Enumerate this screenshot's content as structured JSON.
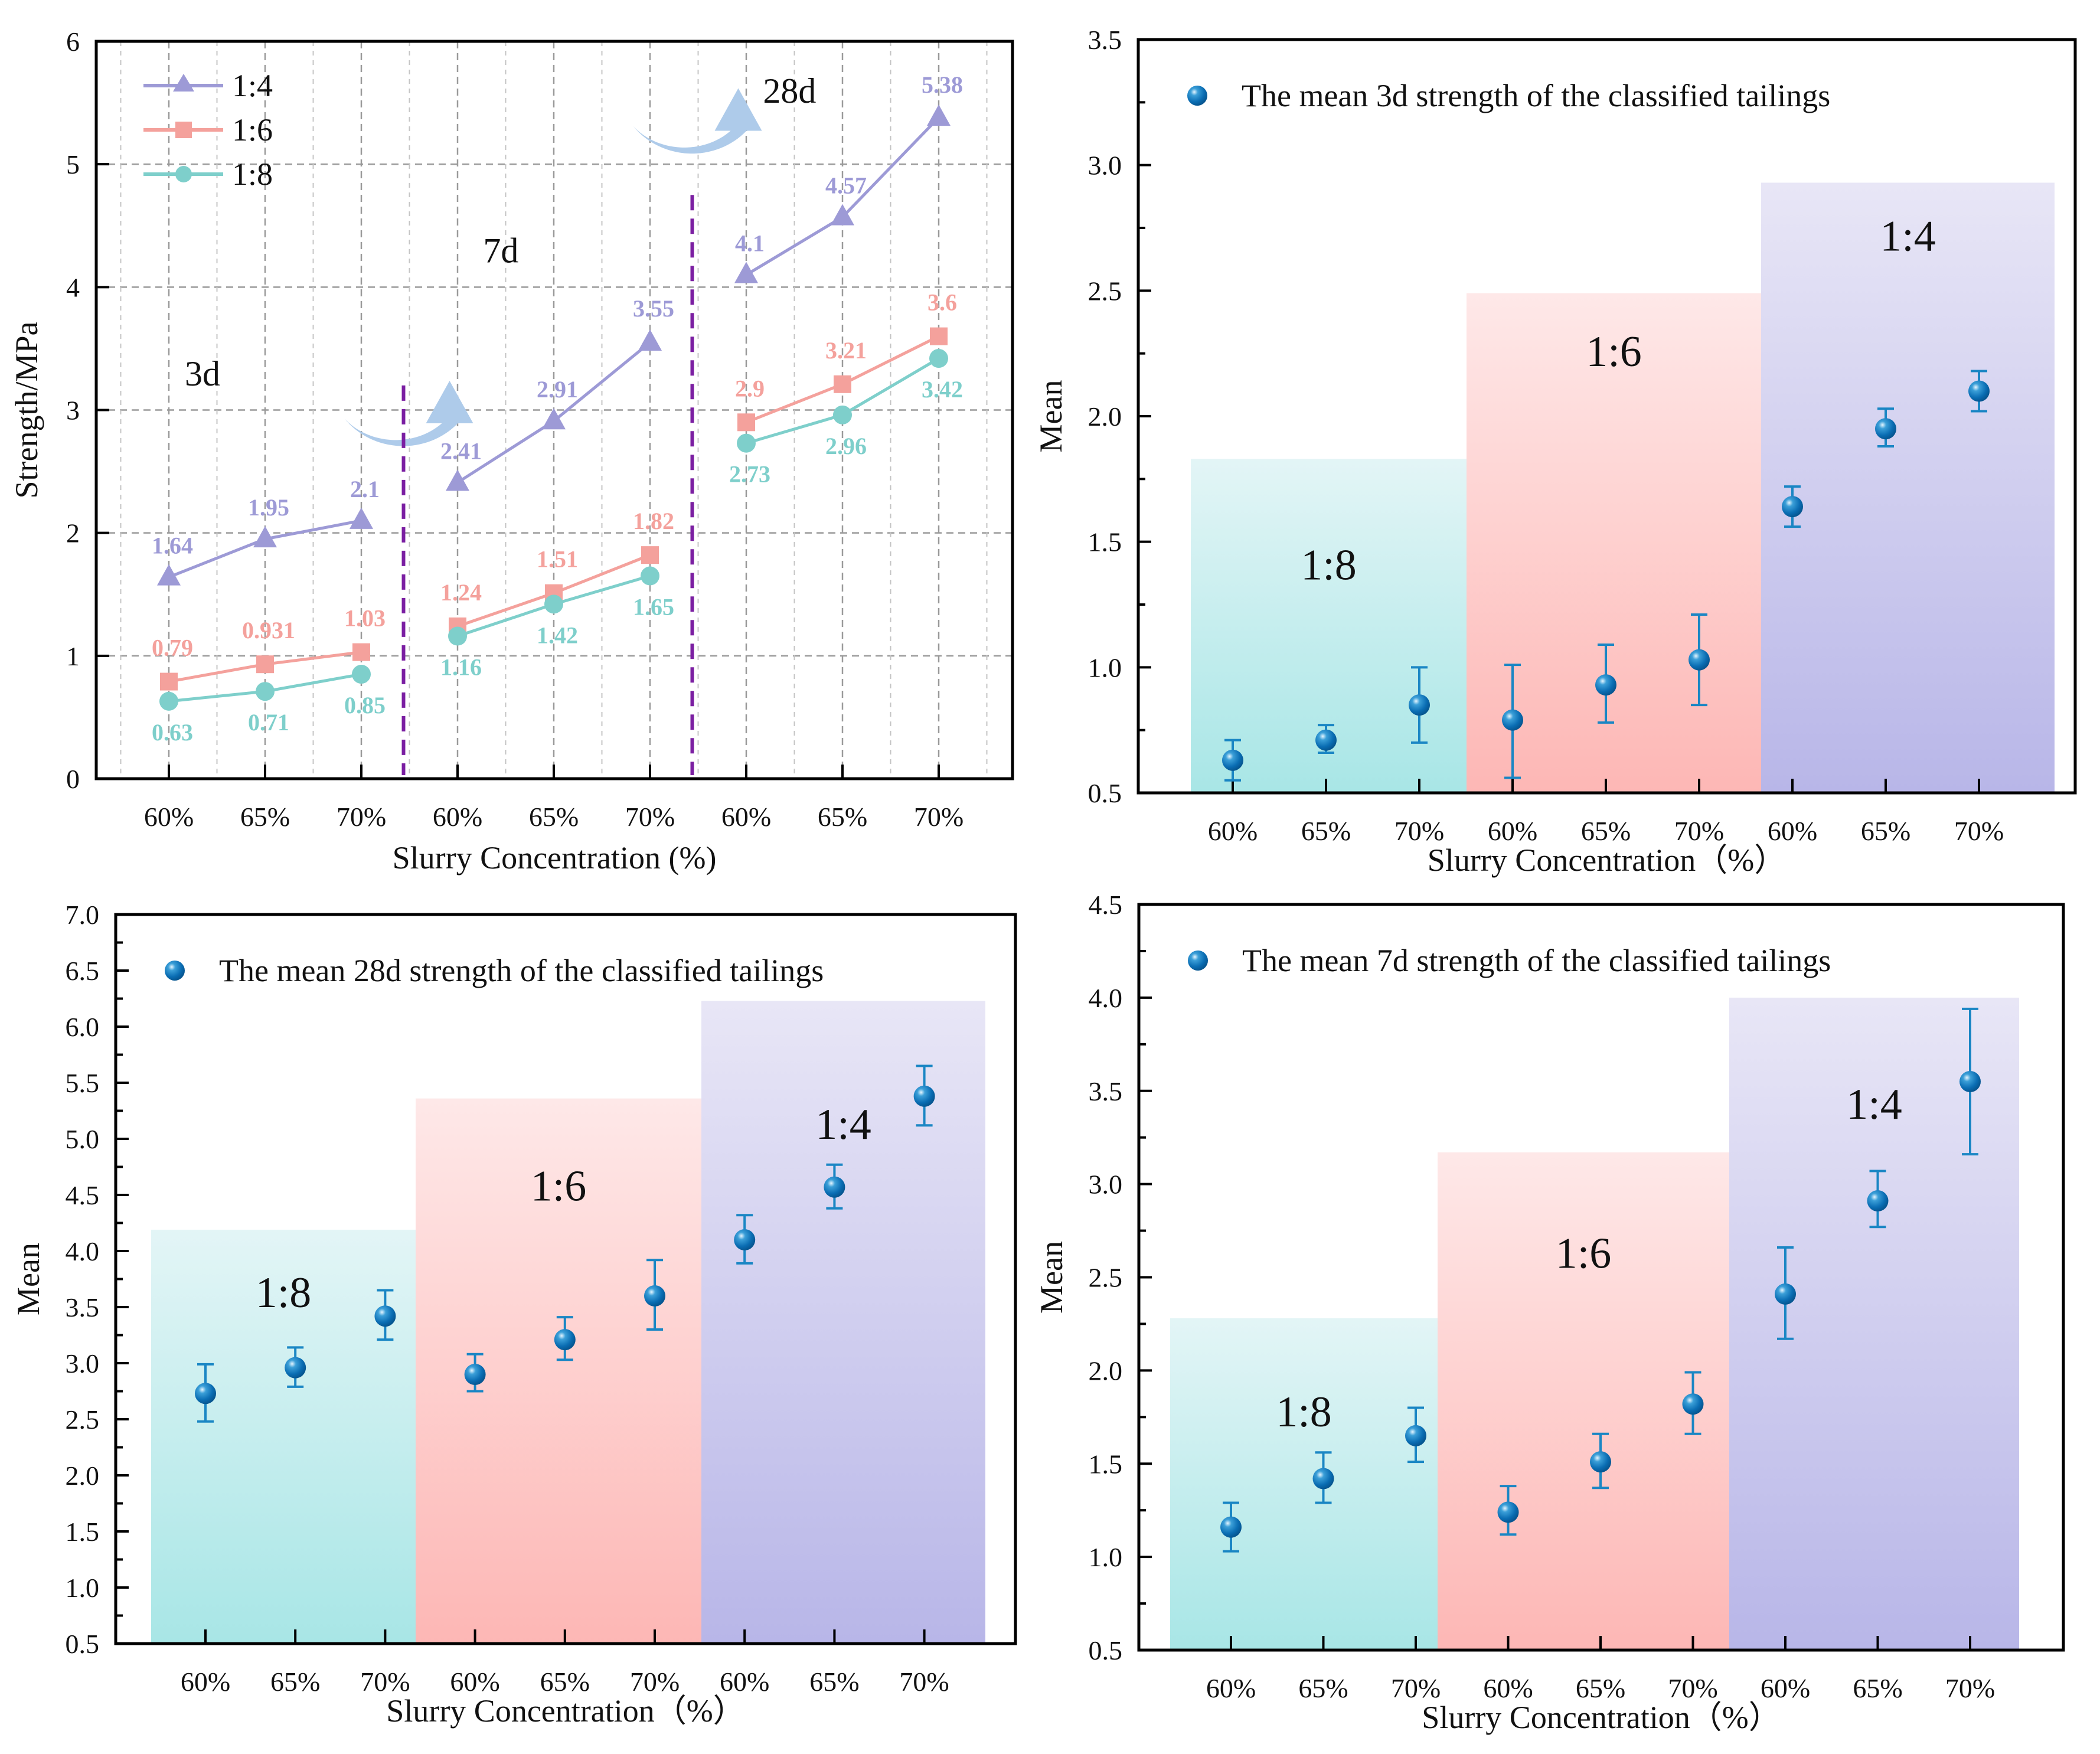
{
  "chart_data": [
    {
      "id": "panel-line",
      "type": "line",
      "title": "",
      "xlabel": "Slurry Concentration (%)",
      "ylabel": "Strength/MPa",
      "ylim": [
        0,
        6
      ],
      "yticks": [
        "0",
        "1",
        "2",
        "3",
        "4",
        "5",
        "6"
      ],
      "categories": [
        "60%",
        "65%",
        "70%",
        "60%",
        "65%",
        "70%",
        "60%",
        "65%",
        "70%"
      ],
      "grid": true,
      "legend_position": "top-left",
      "groups": [
        "3d",
        "7d",
        "28d"
      ],
      "series": [
        {
          "name": "1:4",
          "marker": "triangle",
          "color": "#9d9ad6",
          "values": [
            1.64,
            1.95,
            2.1,
            2.41,
            2.91,
            3.55,
            4.1,
            4.57,
            5.38
          ],
          "labels": [
            "1.64",
            "1.95",
            "2.1",
            "2.41",
            "2.91",
            "3.55",
            "4.1",
            "4.57",
            "5.38"
          ]
        },
        {
          "name": "1:6",
          "marker": "square",
          "color": "#f4a19c",
          "values": [
            0.79,
            0.931,
            1.03,
            1.24,
            1.51,
            1.82,
            2.9,
            3.21,
            3.6
          ],
          "labels": [
            "0.79",
            "0.931",
            "1.03",
            "1.24",
            "1.51",
            "1.82",
            "2.9",
            "3.21",
            "3.6"
          ]
        },
        {
          "name": "1:8",
          "marker": "circle",
          "color": "#7ecfcb",
          "values": [
            0.63,
            0.71,
            0.85,
            1.16,
            1.42,
            1.65,
            2.73,
            2.96,
            3.42
          ],
          "labels": [
            "0.63",
            "0.71",
            "0.85",
            "1.16",
            "1.42",
            "1.65",
            "2.73",
            "2.96",
            "3.42"
          ]
        }
      ],
      "annotations": [
        {
          "text": "3d",
          "x_index": 0.35,
          "y": 3.2
        },
        {
          "text": "7d",
          "x_index": 3.45,
          "y": 4.2
        },
        {
          "text": "28d",
          "x_index": 6.45,
          "y": 5.5
        }
      ],
      "dividers_between": [
        2.5,
        5.5
      ],
      "divider_color": "#7b1fa2"
    },
    {
      "id": "panel-3d",
      "type": "scatter",
      "xlabel": "Slurry Concentration（%）",
      "ylabel": "Mean",
      "ylim": [
        0.5,
        3.5
      ],
      "yticks": [
        "0.5",
        "1.0",
        "1.5",
        "2.0",
        "2.5",
        "3.0",
        "3.5"
      ],
      "categories": [
        "60%",
        "65%",
        "70%",
        "60%",
        "65%",
        "70%",
        "60%",
        "65%",
        "70%"
      ],
      "legend": "The mean 3d strength of the classified tailings",
      "legend_position": "top-left",
      "values": [
        0.63,
        0.71,
        0.85,
        0.79,
        0.93,
        1.03,
        1.64,
        1.95,
        2.1
      ],
      "error_low": [
        0.55,
        0.66,
        0.7,
        0.56,
        0.78,
        0.85,
        1.56,
        1.88,
        2.02
      ],
      "error_high": [
        0.71,
        0.77,
        1.0,
        1.01,
        1.09,
        1.21,
        1.72,
        2.03,
        2.18
      ],
      "regions": [
        {
          "label": "1:8",
          "top": 1.83,
          "label_y": 1.35
        },
        {
          "label": "1:6",
          "top": 2.49,
          "label_y": 2.2
        },
        {
          "label": "1:4",
          "top": 2.93,
          "label_y": 2.66
        }
      ]
    },
    {
      "id": "panel-28d",
      "type": "scatter",
      "xlabel": "Slurry Concentration（%）",
      "ylabel": "Mean",
      "ylim": [
        0.5,
        7.0
      ],
      "yticks": [
        "0.5",
        "1.0",
        "1.5",
        "2.0",
        "2.5",
        "3.0",
        "3.5",
        "4.0",
        "4.5",
        "5.0",
        "5.5",
        "6.0",
        "6.5",
        "7.0"
      ],
      "categories": [
        "60%",
        "65%",
        "70%",
        "60%",
        "65%",
        "70%",
        "60%",
        "65%",
        "70%"
      ],
      "legend": "The mean 28d strength of the classified tailings",
      "legend_position": "top-left",
      "values": [
        2.73,
        2.96,
        3.42,
        2.9,
        3.21,
        3.6,
        4.1,
        4.57,
        5.38
      ],
      "error_low": [
        2.48,
        2.79,
        3.21,
        2.75,
        3.03,
        3.3,
        3.89,
        4.38,
        5.12
      ],
      "error_high": [
        2.99,
        3.14,
        3.65,
        3.08,
        3.41,
        3.92,
        4.32,
        4.77,
        5.65
      ],
      "regions": [
        {
          "label": "1:8",
          "top": 4.19,
          "label_y": 3.5
        },
        {
          "label": "1:6",
          "top": 5.36,
          "label_y": 4.45
        },
        {
          "label": "1:4",
          "top": 6.23,
          "label_y": 5.0
        }
      ]
    },
    {
      "id": "panel-7d",
      "type": "scatter",
      "xlabel": "Slurry Concentration（%）",
      "ylabel": "Mean",
      "ylim": [
        0.5,
        4.5
      ],
      "yticks": [
        "0.5",
        "1.0",
        "1.5",
        "2.0",
        "2.5",
        "3.0",
        "3.5",
        "4.0",
        "4.5"
      ],
      "categories": [
        "60%",
        "65%",
        "70%",
        "60%",
        "65%",
        "70%",
        "60%",
        "65%",
        "70%"
      ],
      "legend": "The mean 7d strength of the classified tailings",
      "legend_position": "top-left",
      "values": [
        1.16,
        1.42,
        1.65,
        1.24,
        1.51,
        1.82,
        2.41,
        2.91,
        3.55
      ],
      "error_low": [
        1.03,
        1.29,
        1.51,
        1.12,
        1.37,
        1.66,
        2.17,
        2.77,
        3.16
      ],
      "error_high": [
        1.29,
        1.56,
        1.8,
        1.38,
        1.66,
        1.99,
        2.66,
        3.07,
        3.94
      ],
      "regions": [
        {
          "label": "1:8",
          "top": 2.28,
          "label_y": 1.7
        },
        {
          "label": "1:6",
          "top": 3.17,
          "label_y": 2.55
        },
        {
          "label": "1:4",
          "top": 4.0,
          "label_y": 3.35
        }
      ]
    }
  ],
  "colors": {
    "point": "#0a6db3",
    "point_highlight": "#bfe4f7",
    "error_bar": "#1a86c4",
    "region_1_8": [
      "#e3f5f6",
      "#a8e6e6"
    ],
    "region_1_6": [
      "#fee8e8",
      "#fdb7b5"
    ],
    "region_1_4": [
      "#e8e6f6",
      "#b8b6e8"
    ],
    "arrow": "#aecbea",
    "grid": "#9a9a9a"
  }
}
